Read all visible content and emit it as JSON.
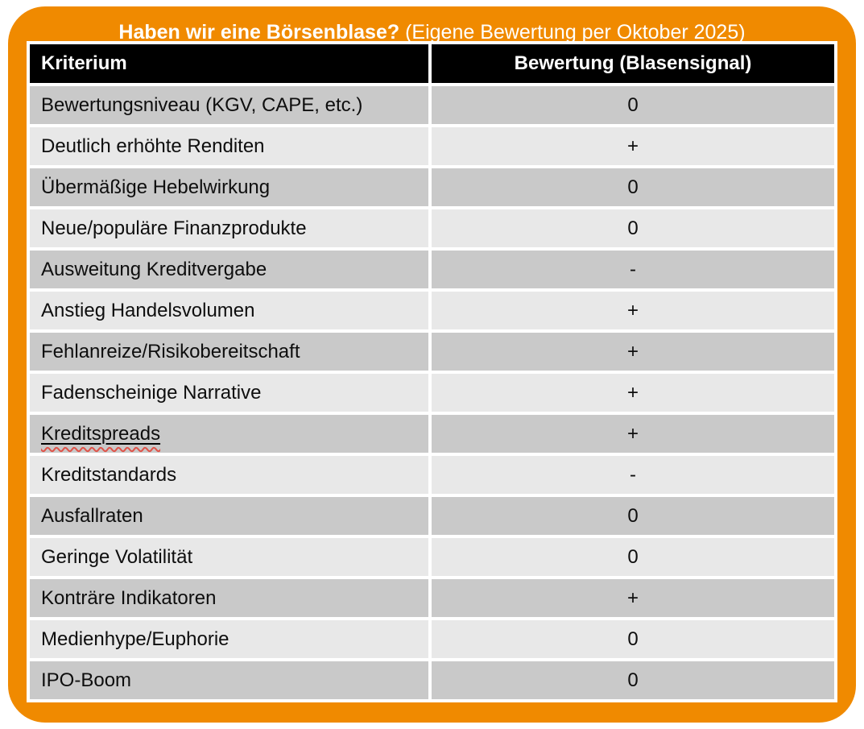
{
  "title": {
    "bold": "Haben wir eine Börsenblase?",
    "regular": " (Eigene Bewertung per Oktober 2025)"
  },
  "chart_data": {
    "type": "table",
    "title": "Haben wir eine Börsenblase? (Eigene Bewertung per Oktober 2025)",
    "columns": [
      "Kriterium",
      "Bewertung (Blasensignal)"
    ],
    "rows": [
      [
        "Bewertungsniveau (KGV, CAPE, etc.)",
        "0"
      ],
      [
        "Deutlich erhöhte Renditen",
        "+"
      ],
      [
        "Übermäßige Hebelwirkung",
        "0"
      ],
      [
        "Neue/populäre Finanzprodukte",
        "0"
      ],
      [
        "Ausweitung Kreditvergabe",
        "-"
      ],
      [
        "Anstieg Handelsvolumen",
        "+"
      ],
      [
        "Fehlanreize/Risikobereitschaft",
        "+"
      ],
      [
        "Fadenscheinige Narrative",
        "+"
      ],
      [
        "Kreditspreads",
        "+"
      ],
      [
        "Kreditstandards",
        "-"
      ],
      [
        "Ausfallraten",
        "0"
      ],
      [
        "Geringe Volatilität",
        "0"
      ],
      [
        "Konträre Indikatoren",
        "+"
      ],
      [
        "Medienhype/Euphorie",
        "0"
      ],
      [
        "IPO-Boom",
        "0"
      ]
    ],
    "underlined_row_index": 8,
    "layout_hints": {
      "striped": true,
      "first_data_row_shade": "dark",
      "header_style": "black-bar"
    }
  },
  "colors": {
    "accent_orange": "#F08A00",
    "header_bg": "#000000",
    "header_text": "#FFFFFF",
    "title_text": "#FFFFFF",
    "row_dark": "#C9C9C9",
    "row_light": "#E8E8E8",
    "spellcheck_red": "#E0544A"
  }
}
